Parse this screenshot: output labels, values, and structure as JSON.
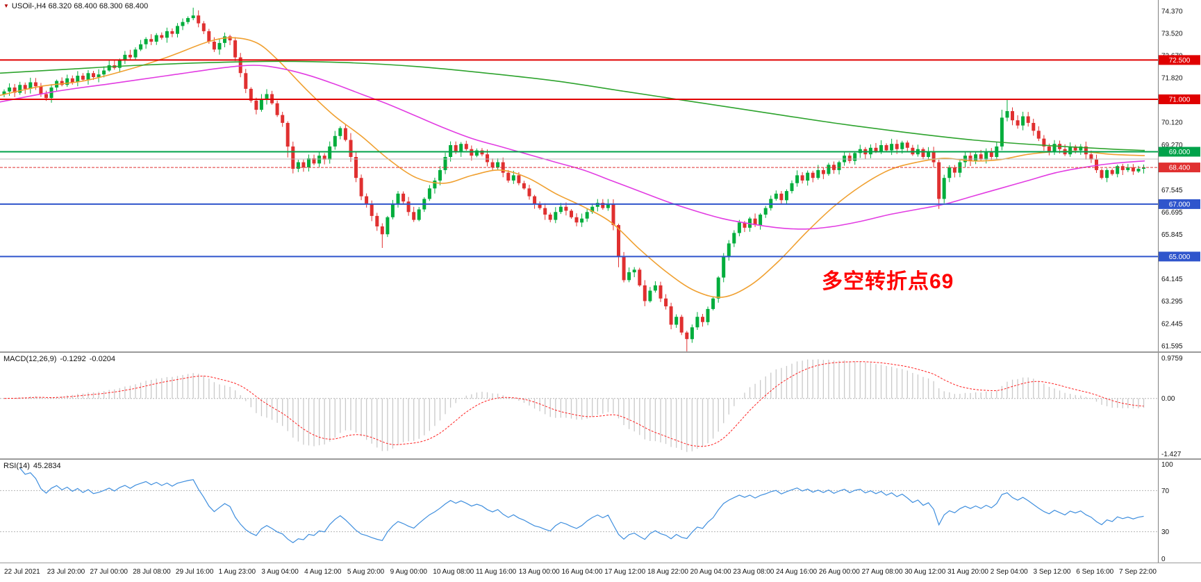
{
  "header": {
    "marker_icon": "triangle-down-icon",
    "symbol_text": "USOil-,H4",
    "ohlc_text": "68.320 68.400 68.300 68.400"
  },
  "annotation": {
    "text": "多空转折点69",
    "color": "#ff0000"
  },
  "chart_data": [
    {
      "type": "candlestick",
      "title": "USOil-,H4",
      "price_range": [
        61.38,
        74.79
      ],
      "up_color": "#00ad3c",
      "down_color": "#e03030",
      "first_open": 71.2,
      "closes": [
        71.3,
        71.45,
        71.25,
        71.55,
        71.4,
        71.65,
        71.5,
        71.2,
        71.05,
        71.45,
        71.7,
        71.55,
        71.8,
        71.65,
        71.9,
        71.75,
        72.0,
        71.85,
        71.95,
        72.1,
        72.3,
        72.2,
        72.5,
        72.7,
        72.6,
        72.9,
        73.1,
        73.3,
        73.2,
        73.45,
        73.35,
        73.6,
        73.5,
        73.8,
        73.95,
        74.1,
        74.2,
        73.9,
        73.6,
        73.2,
        72.9,
        73.15,
        73.4,
        73.25,
        72.6,
        72.0,
        71.4,
        70.95,
        70.6,
        71.0,
        71.2,
        70.85,
        70.4,
        70.1,
        69.2,
        68.35,
        68.6,
        68.4,
        68.75,
        68.55,
        68.85,
        68.7,
        69.2,
        69.6,
        69.9,
        69.45,
        68.8,
        68.0,
        67.3,
        67.0,
        66.55,
        66.15,
        65.85,
        66.5,
        67.0,
        67.4,
        67.1,
        66.7,
        66.4,
        66.8,
        67.2,
        67.6,
        67.9,
        68.3,
        68.8,
        69.25,
        69.0,
        69.3,
        69.1,
        68.85,
        69.05,
        68.9,
        68.6,
        68.4,
        68.6,
        68.2,
        67.9,
        68.1,
        67.8,
        67.6,
        67.3,
        67.0,
        66.85,
        66.6,
        66.4,
        66.7,
        66.9,
        66.75,
        66.5,
        66.3,
        66.45,
        66.7,
        66.9,
        67.05,
        66.85,
        67.0,
        66.2,
        65.0,
        64.1,
        64.4,
        64.5,
        63.9,
        63.3,
        63.7,
        63.9,
        63.4,
        63.1,
        62.4,
        62.7,
        62.1,
        61.85,
        62.3,
        62.7,
        62.5,
        63.0,
        63.4,
        64.2,
        65.0,
        65.5,
        65.9,
        66.3,
        66.1,
        66.45,
        66.2,
        66.6,
        66.85,
        67.2,
        67.4,
        67.15,
        67.5,
        67.8,
        68.1,
        67.9,
        68.2,
        68.0,
        68.3,
        68.15,
        68.5,
        68.3,
        68.6,
        68.85,
        68.65,
        68.95,
        69.1,
        68.9,
        69.15,
        69.0,
        69.25,
        69.05,
        69.3,
        69.1,
        69.35,
        69.15,
        68.9,
        69.1,
        68.8,
        69.0,
        68.6,
        67.2,
        68.0,
        68.4,
        68.2,
        68.6,
        68.85,
        68.65,
        68.9,
        68.7,
        69.0,
        68.8,
        69.2,
        70.3,
        70.55,
        70.2,
        70.0,
        70.35,
        70.1,
        69.8,
        69.5,
        69.2,
        69.0,
        69.3,
        69.1,
        68.9,
        69.2,
        69.05,
        69.2,
        68.9,
        68.7,
        68.3,
        68.0,
        68.3,
        68.15,
        68.45,
        68.3,
        68.4,
        68.25,
        68.35,
        68.4
      ],
      "wick_overrides": {
        "36": [
          0.15,
          0
        ],
        "54": [
          0,
          0.25
        ],
        "66": [
          0.2,
          0
        ],
        "72": [
          0,
          0.45
        ],
        "117": [
          0,
          0.35
        ],
        "130": [
          0,
          0.3
        ],
        "178": [
          0,
          0.3
        ],
        "190": [
          0.25,
          0
        ],
        "191": [
          0.3,
          0
        ]
      },
      "y_ticks": [
        "74.370",
        "73.520",
        "72.670",
        "71.820",
        "70.970",
        "70.120",
        "69.270",
        "68.420",
        "67.545",
        "66.695",
        "65.845",
        "64.995",
        "64.145",
        "63.295",
        "62.445",
        "61.595"
      ],
      "moving_averages": [
        {
          "name": "ma-fast",
          "color": "#f0a030",
          "anchors": [
            [
              0,
              71.15
            ],
            [
              60,
              71.5
            ],
            [
              120,
              71.7
            ],
            [
              180,
              72.1
            ],
            [
              240,
              72.6
            ],
            [
              300,
              73.2
            ],
            [
              335,
              73.35
            ],
            [
              370,
              73.15
            ],
            [
              400,
              72.5
            ],
            [
              440,
              71.4
            ],
            [
              480,
              70.4
            ],
            [
              520,
              69.6
            ],
            [
              560,
              68.7
            ],
            [
              600,
              68.0
            ],
            [
              640,
              67.8
            ],
            [
              680,
              68.1
            ],
            [
              720,
              68.3
            ],
            [
              760,
              68.0
            ],
            [
              800,
              67.4
            ],
            [
              840,
              66.9
            ],
            [
              880,
              66.3
            ],
            [
              920,
              65.3
            ],
            [
              960,
              64.4
            ],
            [
              1000,
              63.7
            ],
            [
              1040,
              63.45
            ],
            [
              1080,
              63.9
            ],
            [
              1120,
              64.8
            ],
            [
              1160,
              65.9
            ],
            [
              1200,
              66.9
            ],
            [
              1240,
              67.7
            ],
            [
              1280,
              68.3
            ],
            [
              1320,
              68.6
            ],
            [
              1360,
              68.75
            ],
            [
              1400,
              68.65
            ],
            [
              1440,
              68.7
            ],
            [
              1480,
              68.9
            ],
            [
              1520,
              69.0
            ],
            [
              1560,
              69.0
            ],
            [
              1600,
              68.9
            ],
            [
              1648,
              68.85
            ]
          ]
        },
        {
          "name": "ma-medium",
          "color": "#e23ce2",
          "anchors": [
            [
              0,
              70.9
            ],
            [
              80,
              71.3
            ],
            [
              160,
              71.6
            ],
            [
              240,
              71.9
            ],
            [
              320,
              72.2
            ],
            [
              365,
              72.3
            ],
            [
              400,
              72.2
            ],
            [
              440,
              71.95
            ],
            [
              480,
              71.6
            ],
            [
              520,
              71.2
            ],
            [
              560,
              70.8
            ],
            [
              600,
              70.35
            ],
            [
              640,
              69.9
            ],
            [
              680,
              69.5
            ],
            [
              720,
              69.2
            ],
            [
              760,
              68.9
            ],
            [
              800,
              68.6
            ],
            [
              840,
              68.3
            ],
            [
              880,
              67.9
            ],
            [
              920,
              67.5
            ],
            [
              960,
              67.1
            ],
            [
              1000,
              66.75
            ],
            [
              1040,
              66.45
            ],
            [
              1080,
              66.25
            ],
            [
              1120,
              66.1
            ],
            [
              1160,
              66.05
            ],
            [
              1200,
              66.15
            ],
            [
              1240,
              66.35
            ],
            [
              1280,
              66.6
            ],
            [
              1320,
              66.8
            ],
            [
              1360,
              67.0
            ],
            [
              1400,
              67.3
            ],
            [
              1440,
              67.6
            ],
            [
              1480,
              67.9
            ],
            [
              1520,
              68.2
            ],
            [
              1560,
              68.4
            ],
            [
              1600,
              68.55
            ],
            [
              1648,
              68.65
            ]
          ]
        },
        {
          "name": "ma-slow",
          "color": "#2da32d",
          "anchors": [
            [
              0,
              72.0
            ],
            [
              100,
              72.15
            ],
            [
              200,
              72.3
            ],
            [
              300,
              72.4
            ],
            [
              400,
              72.45
            ],
            [
              500,
              72.4
            ],
            [
              600,
              72.25
            ],
            [
              700,
              72.0
            ],
            [
              800,
              71.7
            ],
            [
              900,
              71.3
            ],
            [
              1000,
              70.9
            ],
            [
              1100,
              70.5
            ],
            [
              1200,
              70.1
            ],
            [
              1300,
              69.75
            ],
            [
              1400,
              69.45
            ],
            [
              1500,
              69.25
            ],
            [
              1600,
              69.1
            ],
            [
              1648,
              69.05
            ]
          ]
        }
      ],
      "hlines": [
        {
          "price": 72.5,
          "label": "72.500",
          "color": "#e00000",
          "width": 2
        },
        {
          "price": 71.0,
          "label": "71.000",
          "color": "#e00000",
          "width": 2
        },
        {
          "price": 69.0,
          "label": "69.000",
          "color": "#00a24a",
          "width": 2
        },
        {
          "price": 68.72,
          "label": null,
          "color": "#b8b8b8",
          "width": 1
        },
        {
          "price": 67.0,
          "label": "67.000",
          "color": "#2f55cc",
          "width": 2
        },
        {
          "price": 65.0,
          "label": "65.000",
          "color": "#2f55cc",
          "width": 2
        }
      ],
      "bid": {
        "price": 68.4,
        "label": "68.400",
        "color": "#e03030"
      },
      "x_labels": [
        "22 Jul 2021",
        "23 Jul 20:00",
        "27 Jul 00:00",
        "28 Jul 08:00",
        "29 Jul 16:00",
        "1 Aug 23:00",
        "3 Aug 04:00",
        "4 Aug 12:00",
        "5 Aug 20:00",
        "9 Aug 00:00",
        "10 Aug 08:00",
        "11 Aug 16:00",
        "13 Aug 00:00",
        "16 Aug 04:00",
        "17 Aug 12:00",
        "18 Aug 22:00",
        "20 Aug 04:00",
        "23 Aug 08:00",
        "24 Aug 16:00",
        "26 Aug 00:00",
        "27 Aug 08:00",
        "30 Aug 12:00",
        "31 Aug 20:00",
        "2 Sep 04:00",
        "3 Sep 12:00",
        "6 Sep 16:00",
        "7 Sep 22:00"
      ]
    },
    {
      "type": "histogram+line",
      "name": "MACD",
      "label": "MACD(12,26,9)",
      "value_main": "-0.1292",
      "value_signal": "-0.0204",
      "params": {
        "fast": 12,
        "slow": 26,
        "signal": 9
      },
      "y_ticks": [
        "0.9759",
        "0.00",
        "-1.427"
      ],
      "hist_color": "#c9c9c9",
      "signal_color": "#ff2020"
    },
    {
      "type": "line",
      "name": "RSI",
      "label": "RSI(14)",
      "value": "45.2834",
      "params": {
        "period": 14
      },
      "levels": [
        70,
        30
      ],
      "y_ticks": [
        "100",
        "70",
        "30",
        "0"
      ],
      "line_color": "#3e8ede"
    }
  ]
}
